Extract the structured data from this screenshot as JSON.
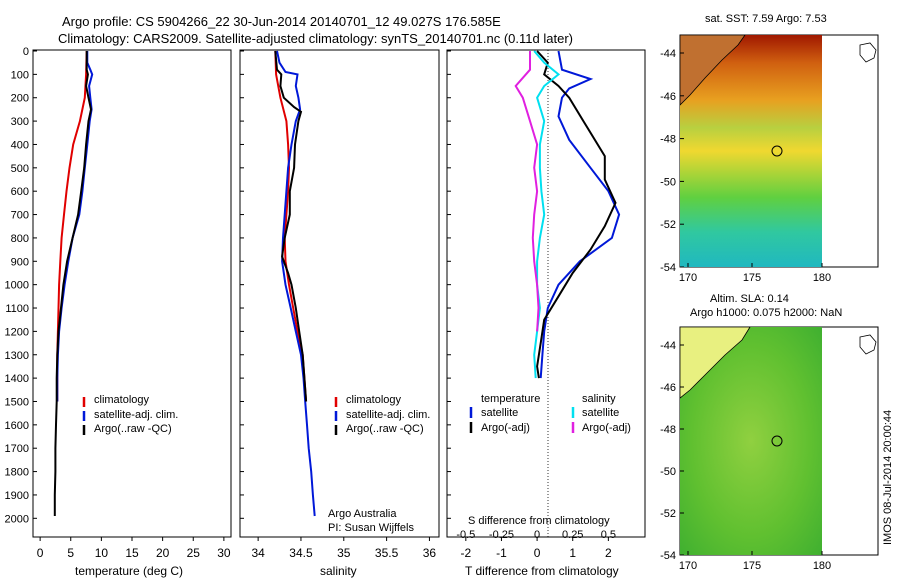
{
  "header": {
    "line1": "Argo profile: CS 5904266_22 30-Jun-2014 20140701_12 49.027S 176.585E",
    "line2": "Climatology: CARS2009. Satellite-adjusted climatology: synTS_20140701.nc (0.11d later)"
  },
  "colors": {
    "climatology": "#e00000",
    "satellite": "#0018d8",
    "argo": "#000000",
    "sal_sat": "#00e0f0",
    "sal_argo": "#e020e0"
  },
  "chart_data": [
    {
      "type": "line",
      "id": "temperature",
      "xlabel": "temperature (deg C)",
      "ylabel": "",
      "xlim": [
        -1,
        31
      ],
      "ylim": [
        2080,
        0
      ],
      "xticks": [
        "0",
        "5",
        "10",
        "15",
        "20",
        "25",
        "30"
      ],
      "yticks": [
        "0",
        "100",
        "200",
        "300",
        "400",
        "500",
        "600",
        "700",
        "800",
        "900",
        "1000",
        "1100",
        "1200",
        "1300",
        "1400",
        "1500",
        "1600",
        "1700",
        "1800",
        "1900",
        "2000"
      ],
      "series": [
        {
          "name": "climatology",
          "color": "#e00000",
          "points": [
            [
              7.6,
              0
            ],
            [
              7.5,
              100
            ],
            [
              7.3,
              200
            ],
            [
              6.5,
              300
            ],
            [
              5.4,
              400
            ],
            [
              4.8,
              500
            ],
            [
              4.3,
              600
            ],
            [
              3.9,
              700
            ],
            [
              3.5,
              800
            ],
            [
              3.3,
              900
            ],
            [
              3.1,
              1000
            ],
            [
              3.0,
              1100
            ],
            [
              2.9,
              1200
            ],
            [
              2.8,
              1300
            ],
            [
              2.8,
              1400
            ],
            [
              2.8,
              1500
            ]
          ]
        },
        {
          "name": "satellite-adj. clim.",
          "color": "#0018d8",
          "points": [
            [
              7.7,
              0
            ],
            [
              7.7,
              50
            ],
            [
              8.2,
              80
            ],
            [
              8.5,
              100
            ],
            [
              8.0,
              150
            ],
            [
              8.2,
              200
            ],
            [
              8.4,
              250
            ],
            [
              8.1,
              300
            ],
            [
              7.7,
              400
            ],
            [
              7.3,
              500
            ],
            [
              6.9,
              600
            ],
            [
              6.4,
              700
            ],
            [
              5.3,
              800
            ],
            [
              4.6,
              900
            ],
            [
              4.0,
              1000
            ],
            [
              3.5,
              1100
            ],
            [
              3.1,
              1200
            ],
            [
              2.9,
              1300
            ],
            [
              2.8,
              1400
            ],
            [
              2.8,
              1500
            ]
          ]
        },
        {
          "name": "Argo(..raw -QC)",
          "color": "#000000",
          "points": [
            [
              7.6,
              0
            ],
            [
              7.6,
              80
            ],
            [
              7.8,
              100
            ],
            [
              7.5,
              150
            ],
            [
              7.9,
              200
            ],
            [
              8.3,
              250
            ],
            [
              7.9,
              300
            ],
            [
              7.5,
              400
            ],
            [
              7.2,
              500
            ],
            [
              6.7,
              600
            ],
            [
              6.2,
              700
            ],
            [
              5.3,
              800
            ],
            [
              4.4,
              900
            ],
            [
              3.8,
              1000
            ],
            [
              3.4,
              1100
            ],
            [
              3.0,
              1200
            ],
            [
              2.8,
              1300
            ],
            [
              2.7,
              1400
            ],
            [
              2.7,
              1500
            ],
            [
              2.6,
              1600
            ],
            [
              2.5,
              1700
            ],
            [
              2.5,
              1800
            ],
            [
              2.4,
              1900
            ],
            [
              2.4,
              1990
            ]
          ]
        }
      ],
      "legend": [
        "climatology",
        "satellite-adj. clim.",
        "Argo(..raw -QC)"
      ]
    },
    {
      "type": "line",
      "id": "salinity",
      "xlabel": "salinity",
      "ylabel": "",
      "xlim": [
        33.8,
        36.1
      ],
      "ylim": [
        2080,
        0
      ],
      "xticks": [
        "34",
        "34.5",
        "35",
        "35.5",
        "36"
      ],
      "series": [
        {
          "name": "climatology",
          "color": "#e00000",
          "points": [
            [
              34.2,
              0
            ],
            [
              34.21,
              100
            ],
            [
              34.26,
              200
            ],
            [
              34.33,
              300
            ],
            [
              34.35,
              400
            ],
            [
              34.36,
              500
            ],
            [
              34.35,
              600
            ],
            [
              34.33,
              700
            ],
            [
              34.31,
              800
            ],
            [
              34.32,
              900
            ],
            [
              34.36,
              1000
            ],
            [
              34.41,
              1100
            ],
            [
              34.46,
              1200
            ],
            [
              34.52,
              1300
            ],
            [
              34.54,
              1400
            ],
            [
              34.56,
              1500
            ]
          ]
        },
        {
          "name": "satellite-adj. clim.",
          "color": "#0018d8",
          "points": [
            [
              34.22,
              0
            ],
            [
              34.25,
              50
            ],
            [
              34.32,
              90
            ],
            [
              34.46,
              100
            ],
            [
              34.44,
              150
            ],
            [
              34.47,
              200
            ],
            [
              34.49,
              250
            ],
            [
              34.44,
              300
            ],
            [
              34.39,
              400
            ],
            [
              34.35,
              500
            ],
            [
              34.33,
              600
            ],
            [
              34.31,
              700
            ],
            [
              34.29,
              800
            ],
            [
              34.28,
              900
            ],
            [
              34.32,
              1000
            ],
            [
              34.38,
              1100
            ],
            [
              34.44,
              1200
            ],
            [
              34.5,
              1300
            ],
            [
              34.53,
              1400
            ],
            [
              34.55,
              1500
            ],
            [
              34.57,
              1600
            ],
            [
              34.59,
              1700
            ],
            [
              34.62,
              1800
            ],
            [
              34.64,
              1900
            ],
            [
              34.66,
              1990
            ]
          ]
        },
        {
          "name": "Argo(..raw -QC)",
          "color": "#000000",
          "points": [
            [
              34.2,
              0
            ],
            [
              34.22,
              80
            ],
            [
              34.27,
              100
            ],
            [
              34.26,
              150
            ],
            [
              34.3,
              200
            ],
            [
              34.42,
              240
            ],
            [
              34.5,
              260
            ],
            [
              34.47,
              300
            ],
            [
              34.43,
              400
            ],
            [
              34.42,
              500
            ],
            [
              34.37,
              600
            ],
            [
              34.37,
              700
            ],
            [
              34.31,
              800
            ],
            [
              34.28,
              880
            ],
            [
              34.35,
              950
            ],
            [
              34.39,
              1000
            ],
            [
              34.44,
              1100
            ],
            [
              34.48,
              1200
            ],
            [
              34.52,
              1300
            ],
            [
              34.54,
              1400
            ],
            [
              34.56,
              1500
            ]
          ]
        }
      ],
      "legend": [
        "climatology",
        "satellite-adj. clim.",
        "Argo(..raw -QC)"
      ],
      "annotation": [
        "Argo Australia",
        "PI: Susan Wijffels"
      ]
    },
    {
      "type": "line",
      "id": "difference",
      "xlabel": "T difference from climatology",
      "xlabel_top": "S difference from climatology",
      "xlim": [
        -2.5,
        3.0
      ],
      "s_xlim": [
        -0.625,
        0.75
      ],
      "ylim": [
        2080,
        0
      ],
      "xticks": [
        "-2",
        "-1",
        "0",
        "1",
        "2"
      ],
      "sticks": [
        "-0.5",
        "-0.25",
        "0",
        "0.25",
        "0.5"
      ],
      "series": [
        {
          "name": "temperature satellite",
          "color": "#0018d8",
          "points": [
            [
              0.6,
              0
            ],
            [
              0.7,
              80
            ],
            [
              1.5,
              120
            ],
            [
              0.9,
              160
            ],
            [
              0.7,
              200
            ],
            [
              0.6,
              280
            ],
            [
              0.9,
              380
            ],
            [
              1.5,
              500
            ],
            [
              2.0,
              600
            ],
            [
              2.3,
              700
            ],
            [
              2.1,
              800
            ],
            [
              1.2,
              900
            ],
            [
              0.6,
              1000
            ],
            [
              0.3,
              1100
            ],
            [
              0.2,
              1200
            ],
            [
              0.15,
              1300
            ],
            [
              0.1,
              1400
            ]
          ]
        },
        {
          "name": "temperature Argo(-adj)",
          "color": "#000000",
          "points": [
            [
              0,
              0
            ],
            [
              0.3,
              50
            ],
            [
              0.2,
              100
            ],
            [
              0.6,
              150
            ],
            [
              0.9,
              200
            ],
            [
              1.3,
              300
            ],
            [
              1.9,
              450
            ],
            [
              1.9,
              550
            ],
            [
              2.2,
              650
            ],
            [
              1.9,
              750
            ],
            [
              1.5,
              850
            ],
            [
              1.0,
              950
            ],
            [
              0.6,
              1050
            ],
            [
              0.2,
              1150
            ],
            [
              0.1,
              1250
            ],
            [
              0.0,
              1350
            ],
            [
              0.05,
              1400
            ]
          ]
        },
        {
          "name": "salinity satellite",
          "color": "#00e0f0",
          "points": [
            [
              -0.02,
              0
            ],
            [
              0.05,
              50
            ],
            [
              0.15,
              100
            ],
            [
              0.05,
              150
            ],
            [
              0.0,
              200
            ],
            [
              0.05,
              300
            ],
            [
              0.02,
              400
            ],
            [
              0.02,
              500
            ],
            [
              0.03,
              600
            ],
            [
              0.05,
              700
            ],
            [
              0.02,
              800
            ],
            [
              0.0,
              900
            ],
            [
              0.0,
              1000
            ],
            [
              0.02,
              1100
            ],
            [
              0.0,
              1200
            ],
            [
              -0.02,
              1300
            ],
            [
              -0.01,
              1400
            ]
          ]
        },
        {
          "name": "salinity Argo(-adj)",
          "color": "#e020e0",
          "points": [
            [
              -0.05,
              0
            ],
            [
              -0.05,
              80
            ],
            [
              -0.15,
              150
            ],
            [
              -0.1,
              200
            ],
            [
              -0.05,
              300
            ],
            [
              0.0,
              400
            ],
            [
              -0.02,
              500
            ],
            [
              0.0,
              600
            ],
            [
              -0.02,
              700
            ],
            [
              -0.03,
              800
            ],
            [
              -0.02,
              900
            ],
            [
              0.0,
              1000
            ],
            [
              0.01,
              1100
            ],
            [
              0.0,
              1200
            ]
          ]
        }
      ],
      "legend": {
        "temperature_title": "temperature",
        "salinity_title": "salinity",
        "satellite": "satellite",
        "argo": "Argo(-adj)"
      }
    }
  ],
  "maps": {
    "sst": {
      "title": "sat. SST: 7.59 Argo: 7.53",
      "xticks": [
        "170",
        "175",
        "180"
      ],
      "yticks": [
        "-44",
        "-46",
        "-48",
        "-50",
        "-52",
        "-54"
      ]
    },
    "sla": {
      "title1": "Altim. SLA: 0.14",
      "title2": "Argo h1000: 0.075 h2000: NaN",
      "xticks": [
        "170",
        "175",
        "180"
      ],
      "yticks": [
        "-44",
        "-46",
        "-48",
        "-50",
        "-52",
        "-54"
      ]
    },
    "stamp": "IMOS 08-Jul-2014 20:00:44"
  }
}
